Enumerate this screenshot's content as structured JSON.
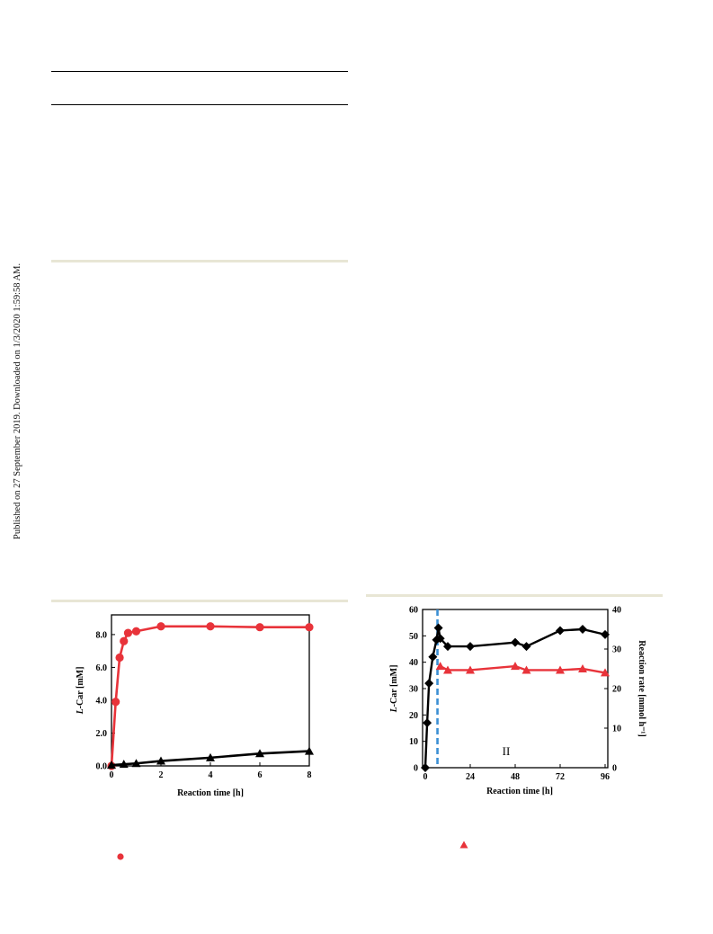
{
  "margin_note": "Published on 27 September 2019. Downloaded on 1/3/2020 1:59:58 AM.",
  "legend_markers": {
    "circle_color": "#e8333a",
    "triangle_color": "#e8333a"
  },
  "chart_data": [
    {
      "type": "line",
      "xlabel": "Reaction time [h]",
      "ylabel": "L-Car [mM]",
      "xlim": [
        0,
        8
      ],
      "ylim": [
        0,
        9.2
      ],
      "x_ticks": [
        "0",
        "2",
        "4",
        "6",
        "8"
      ],
      "y_ticks": [
        "0.0",
        "2.0",
        "4.0",
        "6.0",
        "8.0"
      ],
      "grid": false,
      "series": [
        {
          "color": "#e8333a",
          "marker": "circle",
          "x": [
            0,
            0.17,
            0.33,
            0.5,
            0.67,
            1,
            2,
            4,
            6,
            8
          ],
          "y": [
            0,
            3.9,
            6.6,
            7.6,
            8.1,
            8.2,
            8.5,
            8.5,
            8.45,
            8.45
          ]
        },
        {
          "color": "#000000",
          "marker": "triangle",
          "x": [
            0,
            0.5,
            1,
            2,
            4,
            6,
            8
          ],
          "y": [
            0.05,
            0.1,
            0.15,
            0.3,
            0.5,
            0.75,
            0.9
          ]
        }
      ]
    },
    {
      "type": "line",
      "xlabel": "Reaction time [h]",
      "ylabel": "L-Car [mM]",
      "y2label": "Reaction rate [mmol h⁻¹]",
      "xlim": [
        0,
        96
      ],
      "ylim": [
        0,
        60
      ],
      "y2lim": [
        0,
        40
      ],
      "x_ticks": [
        "0",
        "24",
        "48",
        "72",
        "96"
      ],
      "y_ticks": [
        "0",
        "10",
        "20",
        "30",
        "40",
        "50",
        "60"
      ],
      "y2_ticks": [
        "0",
        "10",
        "20",
        "30",
        "40"
      ],
      "grid": false,
      "annotation": "II",
      "vline_x": 6.5,
      "vline_color": "#3b8fd4",
      "series": [
        {
          "color": "#000000",
          "marker": "diamond",
          "axis": "left",
          "x": [
            0,
            1,
            2,
            4,
            6,
            7,
            8,
            12,
            24,
            48,
            54,
            72,
            84,
            96
          ],
          "y": [
            0,
            17,
            32,
            42,
            48.5,
            53,
            49,
            46,
            46,
            47.5,
            46,
            52,
            52.5,
            50.5
          ]
        },
        {
          "color": "#e8333a",
          "marker": "triangle",
          "axis": "left",
          "x": [
            8,
            12,
            24,
            48,
            54,
            72,
            84,
            96
          ],
          "y": [
            38.5,
            37,
            37,
            38.5,
            37,
            37,
            37.5,
            36
          ]
        }
      ]
    }
  ]
}
